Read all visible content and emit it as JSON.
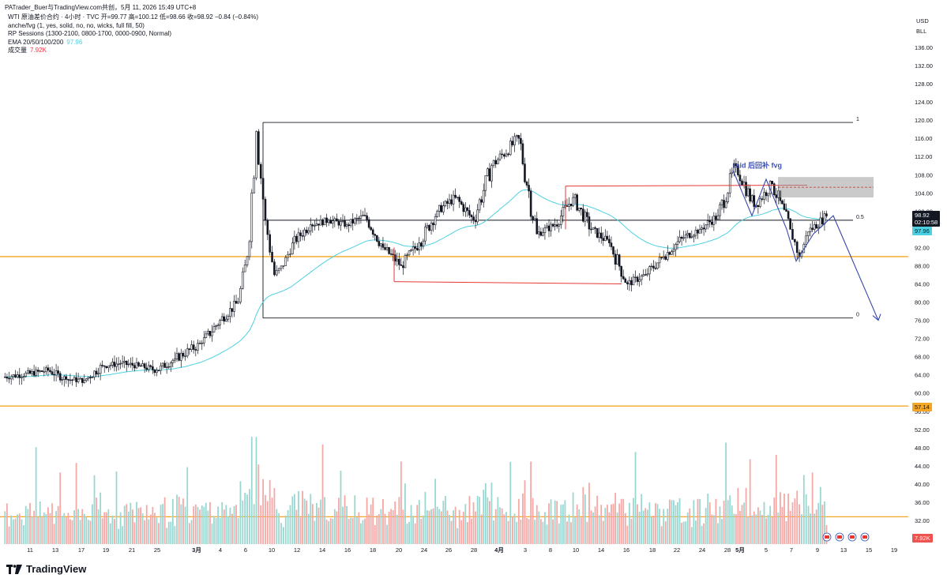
{
  "header": {
    "attribution": "PATrader_Buer与TradingView.com共创，5月 11, 2026 15:49 UTC+8"
  },
  "legend": {
    "symbol_line": "WTI 原油差价合约 · 4小时 · TVC  开=99.77  高=100.12  低=98.66  收=98.92  −0.84 (−0.84%)",
    "fvg_line": "anche/fvg (1, yes, solid, no, no, wicks, full fill, 50)",
    "sessions_line": "RP Sessions (1300-2100, 0800-1700, 0000-0900, Normal)",
    "ema_label": "EMA 20/50/100/200",
    "ema_value": "97.96",
    "volume_label": "成交量",
    "volume_value": "7.92K"
  },
  "axis": {
    "currency": "USD",
    "unit": "BLL"
  },
  "annotations": {
    "fib_top": "1",
    "fib_mid": "0.5",
    "fib_bottom": "0",
    "fvg_text": "raid 后回补 fvg"
  },
  "price_tags": {
    "last_price": "98.92",
    "countdown": "02:10:58",
    "ema_tag": "97.96",
    "support_tag": "57.14",
    "volume_tag": "7.92K"
  },
  "footer": {
    "brand": "TradingView"
  },
  "colors": {
    "up": "#26a69a",
    "down": "#ef5350",
    "ema": "#4dd0e1",
    "orange_line": "#f5a623",
    "fvg_box": "#9e9e9e",
    "path_blue": "#3949ab",
    "red_line": "#e53935"
  },
  "chart_data": {
    "type": "candlestick",
    "title": "",
    "symbol": "WTI 原油差价合约",
    "timeframe": "4小时",
    "x_ticks": [
      "11",
      "13",
      "17",
      "19",
      "21",
      "25",
      "3月",
      "4",
      "6",
      "10",
      "12",
      "14",
      "16",
      "18",
      "20",
      "24",
      "26",
      "28",
      "4月",
      "3",
      "8",
      "10",
      "14",
      "16",
      "18",
      "22",
      "24",
      "28",
      "5月",
      "5",
      "7",
      "9",
      "13",
      "15",
      "19"
    ],
    "y_ticks": [
      136.0,
      132.0,
      128.0,
      124.0,
      120.0,
      116.0,
      112.0,
      108.0,
      104.0,
      100.0,
      96.0,
      92.0,
      88.0,
      84.0,
      80.0,
      76.0,
      72.0,
      68.0,
      64.0,
      60.0,
      56.0,
      52.0,
      48.0,
      44.0,
      40.0,
      36.0,
      32.0
    ],
    "ylim": [
      28,
      138
    ],
    "price_path": [
      {
        "x": "02-08",
        "close": 63.5
      },
      {
        "x": "02-11",
        "close": 64.3
      },
      {
        "x": "02-13",
        "close": 65.0
      },
      {
        "x": "02-15",
        "close": 63.0
      },
      {
        "x": "02-17",
        "close": 62.8
      },
      {
        "x": "02-19",
        "close": 66.0
      },
      {
        "x": "02-21",
        "close": 66.5
      },
      {
        "x": "02-23",
        "close": 66.0
      },
      {
        "x": "02-25",
        "close": 65.0
      },
      {
        "x": "02-27",
        "close": 67.5
      },
      {
        "x": "03-02",
        "close": 71.0
      },
      {
        "x": "03-04",
        "close": 76.0
      },
      {
        "x": "03-06",
        "close": 80.0
      },
      {
        "x": "03-07",
        "close": 90.0
      },
      {
        "x": "03-08",
        "close": 117.5
      },
      {
        "x": "03-09",
        "close": 98.0
      },
      {
        "x": "03-10",
        "close": 86.0
      },
      {
        "x": "03-11",
        "close": 88.0
      },
      {
        "x": "03-12",
        "close": 93.0
      },
      {
        "x": "03-14",
        "close": 97.0
      },
      {
        "x": "03-16",
        "close": 98.0
      },
      {
        "x": "03-18",
        "close": 97.0
      },
      {
        "x": "03-20",
        "close": 99.0
      },
      {
        "x": "03-22",
        "close": 92.0
      },
      {
        "x": "03-24",
        "close": 88.0
      },
      {
        "x": "03-26",
        "close": 93.0
      },
      {
        "x": "03-28",
        "close": 100.0
      },
      {
        "x": "03-30",
        "close": 103.0
      },
      {
        "x": "04-01",
        "close": 98.0
      },
      {
        "x": "04-03",
        "close": 110.0
      },
      {
        "x": "04-06",
        "close": 116.0
      },
      {
        "x": "04-08",
        "close": 95.0
      },
      {
        "x": "04-10",
        "close": 97.0
      },
      {
        "x": "04-12",
        "close": 103.0
      },
      {
        "x": "04-14",
        "close": 96.0
      },
      {
        "x": "04-16",
        "close": 93.0
      },
      {
        "x": "04-18",
        "close": 84.0
      },
      {
        "x": "04-20",
        "close": 86.0
      },
      {
        "x": "04-22",
        "close": 90.0
      },
      {
        "x": "04-24",
        "close": 94.0
      },
      {
        "x": "04-26",
        "close": 96.0
      },
      {
        "x": "04-28",
        "close": 99.0
      },
      {
        "x": "04-30",
        "close": 110.0
      },
      {
        "x": "05-02",
        "close": 101.0
      },
      {
        "x": "05-04",
        "close": 106.0
      },
      {
        "x": "05-06",
        "close": 96.0
      },
      {
        "x": "05-07",
        "close": 90.0
      },
      {
        "x": "05-08",
        "close": 95.5
      },
      {
        "x": "05-10",
        "close": 98.92
      }
    ],
    "horizontal_levels": [
      {
        "label": "1",
        "price": 119.5
      },
      {
        "label": "0.5",
        "price": 98.0
      },
      {
        "label": "0",
        "price": 76.5
      },
      {
        "price": 90.0
      },
      {
        "price": 57.14
      },
      {
        "price": 32.8
      }
    ],
    "fvg_zone": {
      "top": 107.5,
      "bottom": 103.0
    },
    "legend": "top-left",
    "grid": false
  }
}
